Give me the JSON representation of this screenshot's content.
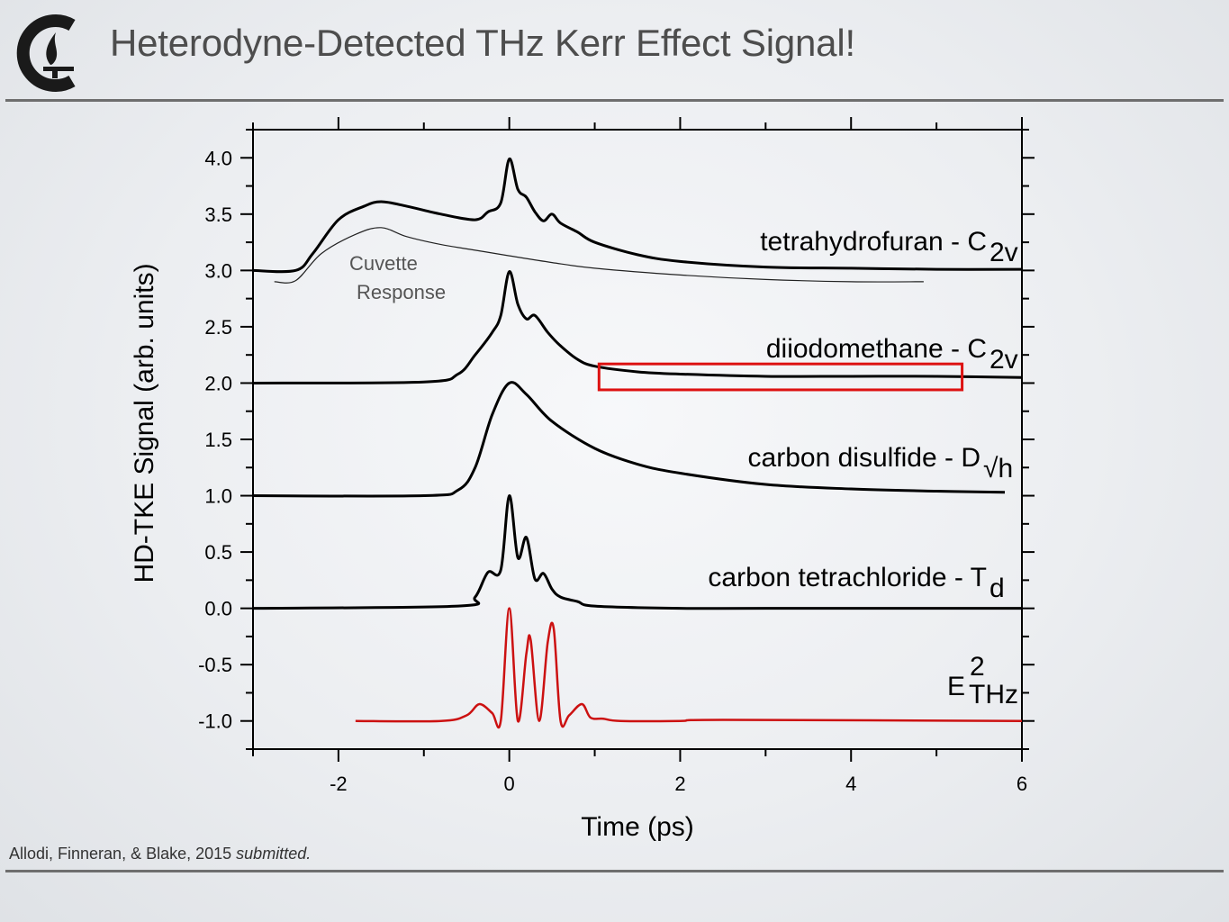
{
  "slide": {
    "title": "Heterodyne-Detected THz Kerr Effect Signal!",
    "citation": "Allodi, Finneran, & Blake, 2015",
    "citation_emphasis": "submitted."
  },
  "colors": {
    "accent": "#cc1111",
    "title_text": "#4d4d4d",
    "logo": "#1a1a1a"
  },
  "chart_data": {
    "type": "line",
    "xlabel": "Time (ps)",
    "ylabel": "HD-TKE Signal (arb. units)",
    "xlim": [
      -3,
      6
    ],
    "ylim": [
      -1.25,
      4.25
    ],
    "x_ticks": [
      "-2",
      "0",
      "2",
      "4",
      "6"
    ],
    "y_ticks": [
      "4.0",
      "3.5",
      "3.0",
      "2.5",
      "2.0",
      "1.5",
      "1.0",
      "0.5",
      "0.0",
      "-0.5",
      "-1.0"
    ],
    "grid": false,
    "series": [
      {
        "name": "tetrahydrofuran - C",
        "subscript": "2v",
        "baseline": 3.0,
        "x": [
          -3.0,
          -2.5,
          -2.3,
          -2.0,
          -1.7,
          -1.5,
          -1.2,
          -0.8,
          -0.4,
          -0.25,
          -0.1,
          0.0,
          0.1,
          0.2,
          0.3,
          0.4,
          0.5,
          0.6,
          0.8,
          1.0,
          1.5,
          2.0,
          3.0,
          4.0,
          5.0,
          6.0
        ],
        "y": [
          3.0,
          3.0,
          3.15,
          3.45,
          3.57,
          3.61,
          3.57,
          3.5,
          3.45,
          3.52,
          3.6,
          3.99,
          3.72,
          3.65,
          3.52,
          3.44,
          3.5,
          3.42,
          3.34,
          3.25,
          3.14,
          3.08,
          3.03,
          3.02,
          3.01,
          3.01
        ]
      },
      {
        "name": "Cuvette Response",
        "baseline": 2.9,
        "x": [
          -2.75,
          -2.5,
          -2.2,
          -1.8,
          -1.5,
          -1.2,
          -0.8,
          -0.4,
          0.0,
          0.5,
          1.0,
          2.0,
          3.0,
          4.0,
          4.85
        ],
        "y": [
          2.9,
          2.91,
          3.15,
          3.32,
          3.38,
          3.3,
          3.23,
          3.18,
          3.13,
          3.07,
          3.02,
          2.96,
          2.92,
          2.9,
          2.9
        ]
      },
      {
        "name": "diiodomethane - C",
        "subscript": "2v",
        "baseline": 2.0,
        "x": [
          -3.0,
          -1.0,
          -0.6,
          -0.4,
          -0.2,
          -0.1,
          0.0,
          0.1,
          0.2,
          0.3,
          0.45,
          0.6,
          0.8,
          1.0,
          1.5,
          2.0,
          3.0,
          4.0,
          5.0,
          6.0
        ],
        "y": [
          2.0,
          2.01,
          2.08,
          2.25,
          2.45,
          2.6,
          2.99,
          2.7,
          2.57,
          2.6,
          2.45,
          2.33,
          2.21,
          2.15,
          2.1,
          2.08,
          2.06,
          2.06,
          2.06,
          2.05
        ]
      },
      {
        "name": "carbon disulfide - D",
        "subscript": "√h",
        "baseline": 1.0,
        "x": [
          -3.0,
          -1.0,
          -0.6,
          -0.4,
          -0.2,
          0.0,
          0.2,
          0.5,
          1.0,
          1.5,
          2.0,
          3.0,
          4.0,
          5.0,
          5.8
        ],
        "y": [
          1.0,
          1.0,
          1.05,
          1.25,
          1.72,
          2.0,
          1.9,
          1.66,
          1.42,
          1.28,
          1.2,
          1.1,
          1.06,
          1.04,
          1.03
        ]
      },
      {
        "name": "carbon tetrachloride - T",
        "subscript": "d",
        "baseline": 0.0,
        "x": [
          -3.0,
          -0.6,
          -0.4,
          -0.25,
          -0.1,
          0.0,
          0.1,
          0.2,
          0.3,
          0.4,
          0.5,
          0.6,
          0.8,
          1.0,
          2.0,
          3.0,
          6.0
        ],
        "y": [
          0.0,
          0.02,
          0.1,
          0.32,
          0.34,
          1.0,
          0.45,
          0.63,
          0.26,
          0.31,
          0.17,
          0.1,
          0.06,
          0.02,
          0.0,
          0.0,
          0.0
        ]
      },
      {
        "name": "E",
        "superscript": "2",
        "subscript": "THz",
        "color": "#cc1111",
        "baseline": -1.0,
        "x": [
          -1.8,
          -0.8,
          -0.5,
          -0.35,
          -0.2,
          -0.1,
          0.0,
          0.1,
          0.2,
          0.25,
          0.35,
          0.45,
          0.52,
          0.6,
          0.7,
          0.85,
          0.95,
          1.1,
          1.3,
          2.0,
          2.5,
          6.0
        ],
        "y": [
          -1.0,
          -1.0,
          -0.95,
          -0.85,
          -0.93,
          -1.0,
          0.0,
          -1.0,
          -0.4,
          -0.28,
          -1.0,
          -0.3,
          -0.18,
          -1.0,
          -0.95,
          -0.85,
          -0.97,
          -0.98,
          -1.0,
          -1.0,
          -0.99,
          -1.0
        ]
      }
    ],
    "highlight_box": {
      "x0": 1.05,
      "x1": 5.3,
      "y0": 1.94,
      "y1": 2.17,
      "color": "#dd1111"
    }
  }
}
